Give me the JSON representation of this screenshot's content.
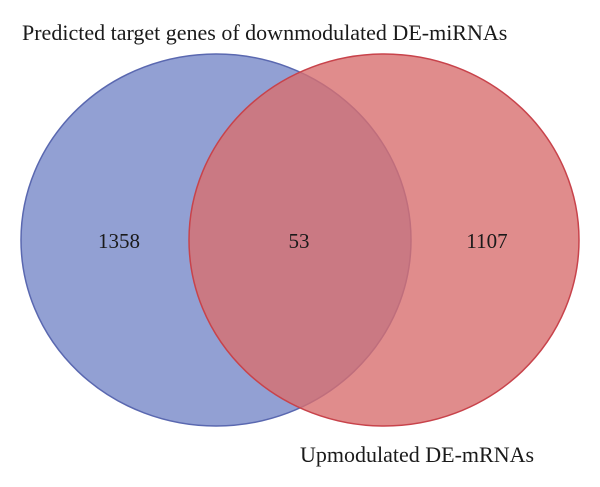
{
  "venn": {
    "sets": [
      {
        "key": "left",
        "label": "Predicted target genes of downmodulated DE-miRNAs",
        "only_count": "1358",
        "fill": "#7f8fcb",
        "stroke": "#5a68b0"
      },
      {
        "key": "right",
        "label": "Upmodulated DE-mRNAs",
        "only_count": "1107",
        "fill": "#d86f6f",
        "stroke": "#c8434b"
      }
    ],
    "intersection_count": "53"
  }
}
